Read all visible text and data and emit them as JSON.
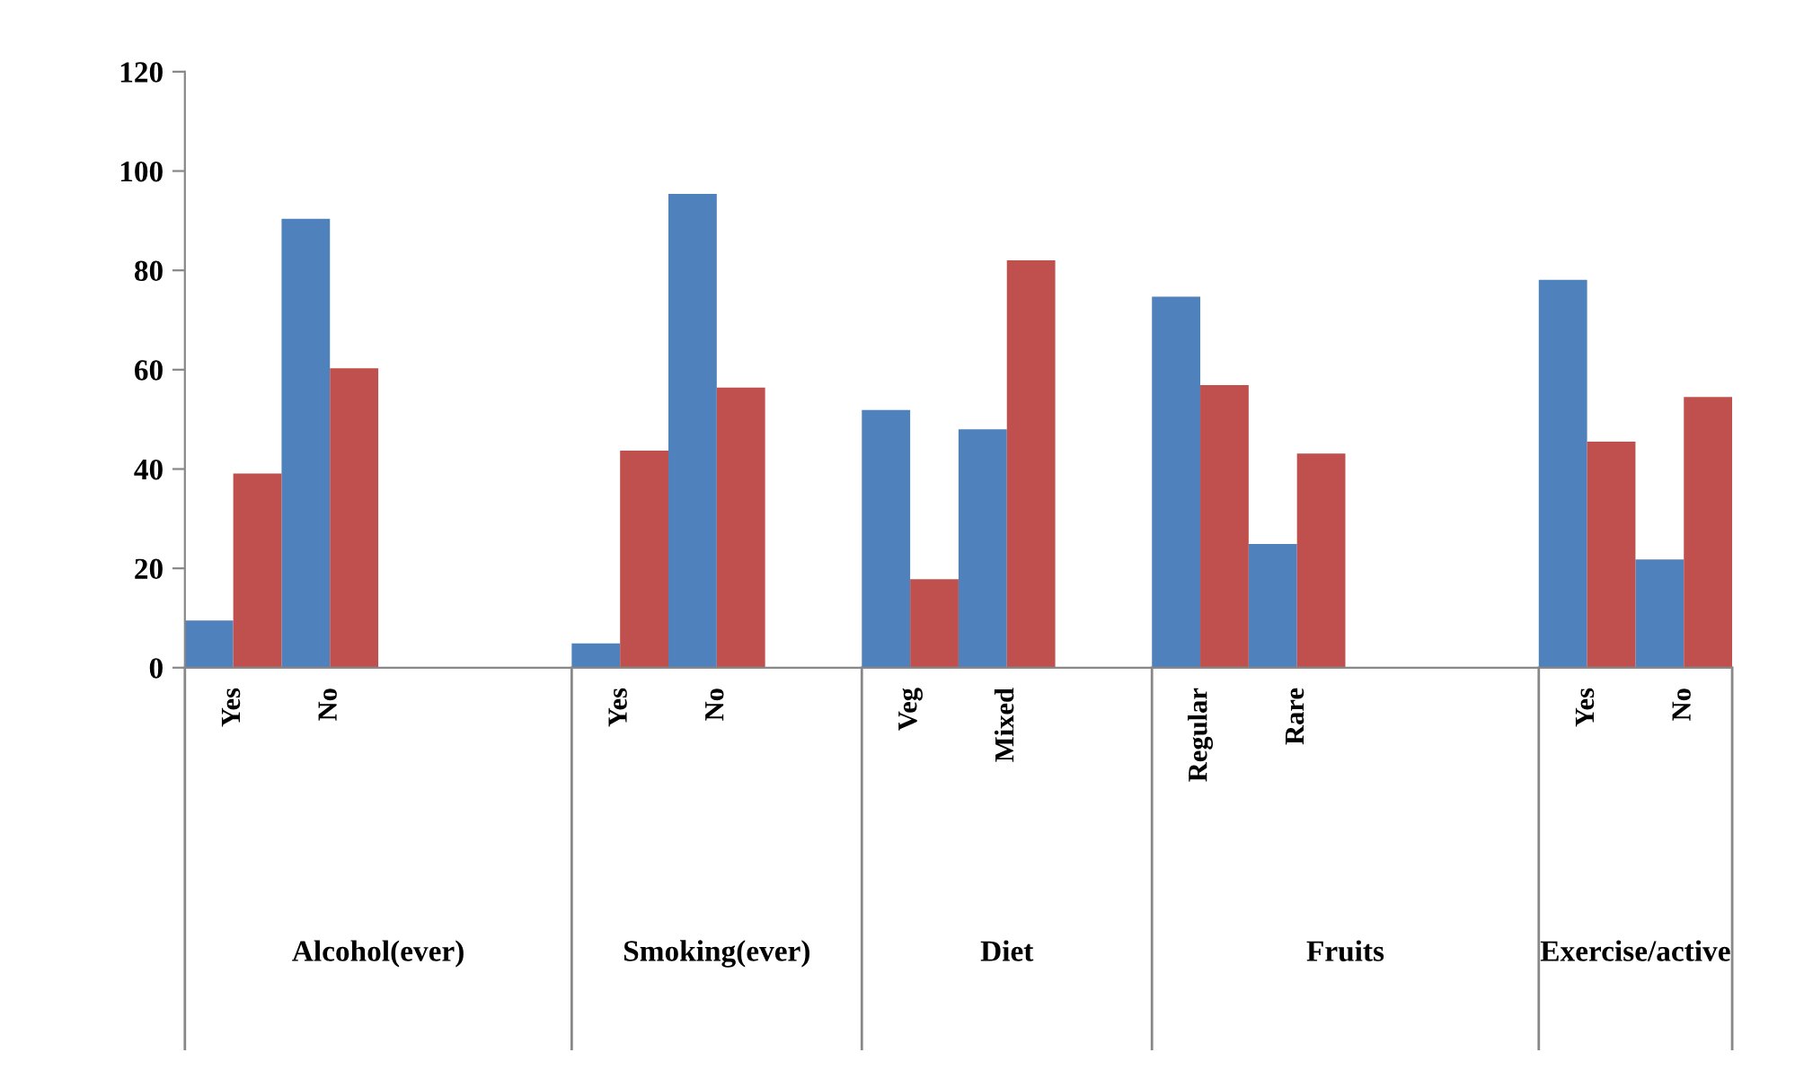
{
  "chart_data": {
    "type": "bar",
    "categories": [
      "Yes",
      "No",
      null,
      null,
      "Yes",
      "No",
      null,
      "Veg",
      "Mixed",
      null,
      "Regular",
      "Rare",
      null,
      null,
      "Yes",
      "No"
    ],
    "series": [
      {
        "color": "#4f81bd",
        "values": [
          9.5,
          90.4,
          null,
          null,
          4.9,
          95.4,
          null,
          51.9,
          48.0,
          null,
          74.7,
          24.9,
          null,
          null,
          78.1,
          21.8
        ]
      },
      {
        "color": "#c0504d",
        "values": [
          39.1,
          60.3,
          null,
          null,
          43.7,
          56.4,
          null,
          17.8,
          82.0,
          null,
          56.9,
          43.1,
          null,
          null,
          45.5,
          54.5
        ]
      }
    ],
    "annotations": [
      "Alcohol(ever)",
      "Smoking(ever)",
      "Diet",
      "Fruits",
      "Exercise/active"
    ],
    "ylim": [
      0,
      120
    ],
    "yticks": [
      0,
      20,
      40,
      60,
      80,
      100,
      120
    ],
    "grid": false,
    "legend": false
  }
}
